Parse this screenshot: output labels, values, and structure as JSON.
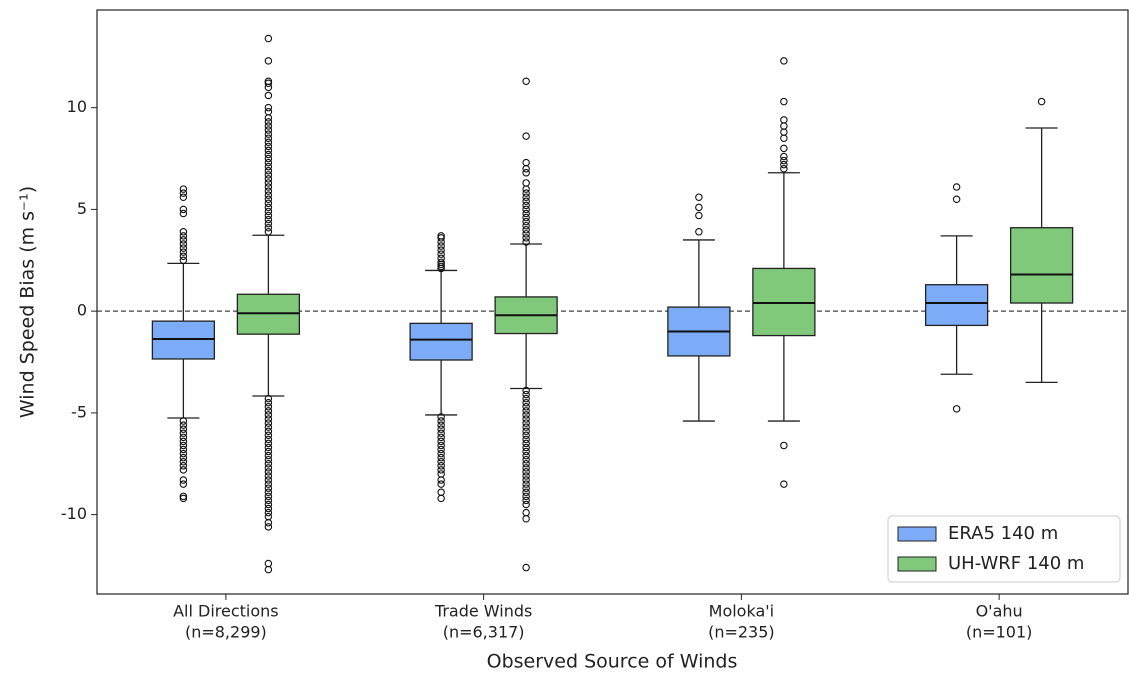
{
  "chart_data": {
    "type": "box",
    "ylabel": "Wind Speed Bias (m s⁻¹)",
    "xlabel": "Observed Source of Winds",
    "categories": [
      [
        "All Directions",
        "(n=8,299)"
      ],
      [
        "Trade Winds",
        "(n=6,317)"
      ],
      [
        "Moloka'i",
        "(n=235)"
      ],
      [
        "O'ahu",
        "(n=101)"
      ]
    ],
    "ylim": [
      -13.9,
      14.8
    ],
    "yticks": [
      -10,
      -5,
      0,
      5,
      10
    ],
    "reference_line": 0,
    "legend": "lower right",
    "series": [
      {
        "name": "ERA5 140 m",
        "color": "#7cacf8",
        "boxes": [
          {
            "whislo": -5.25,
            "q1": -2.35,
            "med": -1.37,
            "q3": -0.49,
            "whishi": 2.35,
            "fliers": [
              2.5,
              2.7,
              2.9,
              3.1,
              3.3,
              3.5,
              3.7,
              3.9,
              4.8,
              5.0,
              5.6,
              5.8,
              6.0,
              -5.4,
              -5.6,
              -5.8,
              -6.0,
              -6.2,
              -6.4,
              -6.6,
              -6.8,
              -7.0,
              -7.2,
              -7.4,
              -7.6,
              -7.8,
              -8.3,
              -8.5,
              -9.1,
              -9.2
            ]
          },
          {
            "whislo": -5.1,
            "q1": -2.4,
            "med": -1.4,
            "q3": -0.6,
            "whishi": 2.0,
            "fliers": [
              2.1,
              2.2,
              2.3,
              2.4,
              2.6,
              2.8,
              3.0,
              3.2,
              3.4,
              3.6,
              3.7,
              -5.2,
              -5.4,
              -5.6,
              -5.8,
              -6.0,
              -6.2,
              -6.4,
              -6.6,
              -6.8,
              -7.0,
              -7.2,
              -7.4,
              -7.6,
              -7.8,
              -8.0,
              -8.3,
              -8.5,
              -8.9,
              -9.2
            ]
          },
          {
            "whislo": -5.4,
            "q1": -2.2,
            "med": -1.0,
            "q3": 0.2,
            "whishi": 3.5,
            "fliers": [
              3.9,
              4.7,
              5.1,
              5.6
            ]
          },
          {
            "whislo": -3.1,
            "q1": -0.7,
            "med": 0.4,
            "q3": 1.3,
            "whishi": 3.7,
            "fliers": [
              5.5,
              6.1,
              -4.8
            ]
          }
        ]
      },
      {
        "name": "UH-WRF 140 m",
        "color": "#80c97b",
        "boxes": [
          {
            "whislo": -4.17,
            "q1": -1.13,
            "med": -0.1,
            "q3": 0.83,
            "whishi": 3.73,
            "fliers": [
              3.9,
              4.1,
              4.3,
              4.5,
              4.7,
              4.9,
              5.1,
              5.3,
              5.5,
              5.7,
              5.9,
              6.1,
              6.3,
              6.5,
              6.7,
              6.9,
              7.1,
              7.3,
              7.5,
              7.7,
              7.9,
              8.1,
              8.3,
              8.5,
              8.7,
              8.9,
              9.1,
              9.3,
              9.5,
              9.8,
              10.0,
              10.6,
              11.0,
              11.2,
              11.3,
              12.3,
              13.4,
              -4.3,
              -4.5,
              -4.7,
              -4.9,
              -5.1,
              -5.3,
              -5.5,
              -5.7,
              -5.9,
              -6.1,
              -6.3,
              -6.5,
              -6.7,
              -6.9,
              -7.1,
              -7.3,
              -7.5,
              -7.7,
              -7.9,
              -8.1,
              -8.3,
              -8.5,
              -8.7,
              -8.9,
              -9.1,
              -9.3,
              -9.5,
              -9.7,
              -9.9,
              -10.1,
              -10.4,
              -10.6,
              -12.4,
              -12.7
            ]
          },
          {
            "whislo": -3.8,
            "q1": -1.1,
            "med": -0.2,
            "q3": 0.7,
            "whishi": 3.3,
            "fliers": [
              3.4,
              3.6,
              3.8,
              4.0,
              4.2,
              4.4,
              4.6,
              4.8,
              5.0,
              5.2,
              5.4,
              5.6,
              5.8,
              6.0,
              6.3,
              6.8,
              7.0,
              7.3,
              8.6,
              11.3,
              -3.9,
              -4.1,
              -4.3,
              -4.5,
              -4.7,
              -4.9,
              -5.1,
              -5.3,
              -5.5,
              -5.7,
              -5.9,
              -6.1,
              -6.3,
              -6.5,
              -6.7,
              -6.9,
              -7.1,
              -7.3,
              -7.5,
              -7.7,
              -7.9,
              -8.1,
              -8.3,
              -8.5,
              -8.7,
              -8.9,
              -9.1,
              -9.3,
              -9.5,
              -9.9,
              -10.2,
              -12.6
            ]
          },
          {
            "whislo": -5.4,
            "q1": -1.2,
            "med": 0.4,
            "q3": 2.1,
            "whishi": 6.8,
            "fliers": [
              7.0,
              7.2,
              7.4,
              7.6,
              8.0,
              8.5,
              8.8,
              9.1,
              9.4,
              10.3,
              12.3,
              -6.6,
              -8.5
            ]
          },
          {
            "whislo": -3.5,
            "q1": 0.4,
            "med": 1.8,
            "q3": 4.1,
            "whishi": 9.0,
            "fliers": [
              10.3
            ]
          }
        ]
      }
    ]
  }
}
